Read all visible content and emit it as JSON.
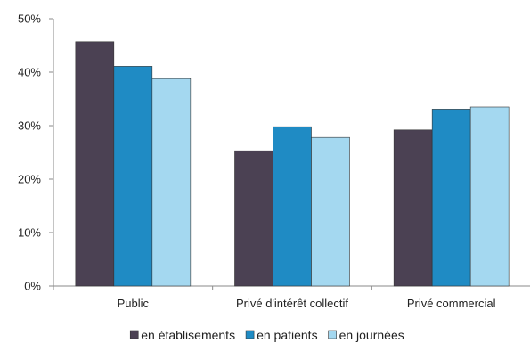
{
  "chart_data": {
    "type": "bar",
    "categories": [
      "Public",
      "Privé d'intérêt collectif",
      "Privé commercial"
    ],
    "series": [
      {
        "name": "en établisements",
        "values": [
          45.7,
          25.3,
          29.2
        ],
        "color": "#4b4153"
      },
      {
        "name": "en patients",
        "values": [
          41.1,
          29.8,
          33.1
        ],
        "color": "#1f8bc4"
      },
      {
        "name": "en journées",
        "values": [
          38.8,
          27.8,
          33.5
        ],
        "color": "#a4d8f0"
      }
    ],
    "y_ticks": [
      "0%",
      "10%",
      "20%",
      "30%",
      "40%",
      "50%"
    ],
    "ylim": [
      0,
      50
    ],
    "y_unit": "%",
    "grid": false,
    "legend_position": "bottom"
  }
}
